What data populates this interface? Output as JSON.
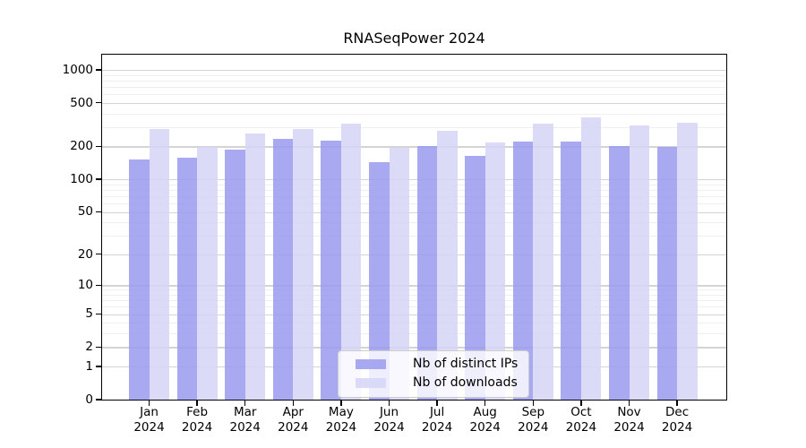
{
  "chart_data": {
    "type": "bar",
    "title": "RNASeqPower 2024",
    "year": "2024",
    "categories": [
      "Jan",
      "Feb",
      "Mar",
      "Apr",
      "May",
      "Jun",
      "Jul",
      "Aug",
      "Sep",
      "Oct",
      "Nov",
      "Dec"
    ],
    "series": [
      {
        "name": "Nb of distinct IPs",
        "color": "rgba(154,154,240,0.85)",
        "values": [
          151,
          159,
          188,
          235,
          225,
          145,
          203,
          163,
          220,
          220,
          201,
          199
        ]
      },
      {
        "name": "Nb of downloads",
        "color": "rgba(213,213,247,0.85)",
        "values": [
          289,
          197,
          261,
          289,
          325,
          193,
          280,
          216,
          325,
          371,
          314,
          331
        ]
      }
    ],
    "y_scale": "log1p",
    "ylim": [
      0,
      1373
    ],
    "y_ticks": [
      0,
      1,
      2,
      5,
      10,
      20,
      50,
      100,
      200,
      500,
      1000
    ],
    "y_minor_ticks": [
      3,
      4,
      6,
      7,
      8,
      9,
      30,
      40,
      60,
      70,
      80,
      90,
      300,
      400,
      600,
      700,
      800,
      900
    ],
    "grid": true,
    "legend_position": "lower center",
    "colors": {
      "major_grid": "#d4d4d4",
      "minor_grid": "#efefef",
      "spine": "#000000",
      "background": "#ffffff"
    }
  }
}
